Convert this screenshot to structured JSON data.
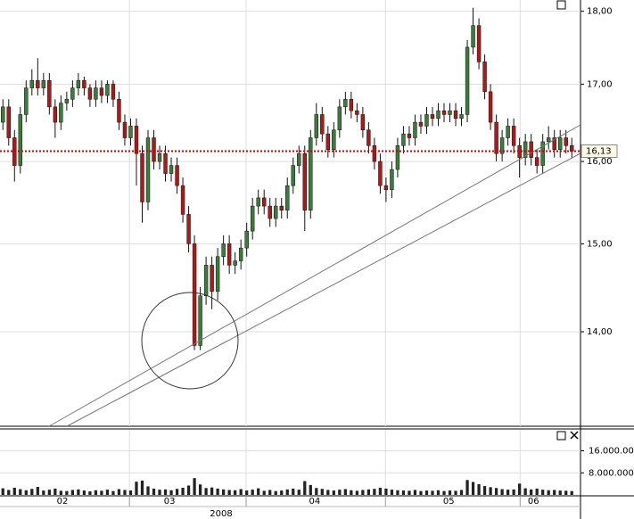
{
  "chart_data": {
    "type": "candlestick",
    "log_scale": true,
    "grid": true,
    "up_color": "#3a7d3a",
    "down_color": "#b01818",
    "ylim": [
      13.0,
      18.16
    ],
    "yticks": [
      {
        "value": 14,
        "label": "14,00"
      },
      {
        "value": 15,
        "label": "15,00"
      },
      {
        "value": 16,
        "label": "16,00"
      },
      {
        "value": 17,
        "label": "17,00"
      },
      {
        "value": 18,
        "label": "18,00"
      }
    ],
    "last_price": {
      "value": 16.13,
      "label": "16,13"
    },
    "xlim": [
      -0.5,
      99.5
    ],
    "xticks": [
      {
        "value": 10.25,
        "label": "02"
      },
      {
        "value": 28.7,
        "label": "03"
      },
      {
        "value": 53.7,
        "label": "04"
      },
      {
        "value": 76.8,
        "label": "05"
      },
      {
        "value": 91.4,
        "label": "06"
      }
    ],
    "year": {
      "value": 37.6,
      "label": "2008"
    },
    "xgrid": [
      21.8,
      41.9,
      65.9,
      89.1
    ],
    "ohlc": [
      [
        16.5,
        16.8,
        16.4,
        16.7
      ],
      [
        16.7,
        16.8,
        16.2,
        16.3
      ],
      [
        16.3,
        16.4,
        15.75,
        15.95
      ],
      [
        15.95,
        16.7,
        15.85,
        16.6
      ],
      [
        16.6,
        17.05,
        16.5,
        16.95
      ],
      [
        16.95,
        17.2,
        16.85,
        17.05
      ],
      [
        17.05,
        17.35,
        16.85,
        16.95
      ],
      [
        16.95,
        17.15,
        16.85,
        17.05
      ],
      [
        17.05,
        17.15,
        16.6,
        16.7
      ],
      [
        16.7,
        16.8,
        16.3,
        16.5
      ],
      [
        16.5,
        16.85,
        16.4,
        16.75
      ],
      [
        16.75,
        16.9,
        16.65,
        16.8
      ],
      [
        16.8,
        17.05,
        16.7,
        16.95
      ],
      [
        16.95,
        17.15,
        16.85,
        17.05
      ],
      [
        17.05,
        17.1,
        16.85,
        16.95
      ],
      [
        16.95,
        17.0,
        16.7,
        16.8
      ],
      [
        16.8,
        17.05,
        16.7,
        16.95
      ],
      [
        16.95,
        17.05,
        16.75,
        16.85
      ],
      [
        16.85,
        17.05,
        16.75,
        17.0
      ],
      [
        17.0,
        17.05,
        16.7,
        16.8
      ],
      [
        16.8,
        16.9,
        16.4,
        16.5
      ],
      [
        16.5,
        16.6,
        16.2,
        16.3
      ],
      [
        16.3,
        16.55,
        16.2,
        16.45
      ],
      [
        16.45,
        16.55,
        15.7,
        16.1
      ],
      [
        16.1,
        16.2,
        15.25,
        15.5
      ],
      [
        15.5,
        16.4,
        15.4,
        16.3
      ],
      [
        16.3,
        16.4,
        15.9,
        16.0
      ],
      [
        16.0,
        16.2,
        15.9,
        16.1
      ],
      [
        16.1,
        16.2,
        15.75,
        15.85
      ],
      [
        15.85,
        16.05,
        15.75,
        15.95
      ],
      [
        15.95,
        16.05,
        15.6,
        15.7
      ],
      [
        15.7,
        15.8,
        15.25,
        15.35
      ],
      [
        15.35,
        15.45,
        14.9,
        15.0
      ],
      [
        15.0,
        15.1,
        13.8,
        13.85
      ],
      [
        13.85,
        14.5,
        13.8,
        14.4
      ],
      [
        14.4,
        14.85,
        14.3,
        14.75
      ],
      [
        14.75,
        14.85,
        14.25,
        14.45
      ],
      [
        14.45,
        14.95,
        14.35,
        14.85
      ],
      [
        14.85,
        15.1,
        14.75,
        15.0
      ],
      [
        15.0,
        15.1,
        14.65,
        14.75
      ],
      [
        14.75,
        14.9,
        14.65,
        14.8
      ],
      [
        14.8,
        15.05,
        14.7,
        14.95
      ],
      [
        14.95,
        15.25,
        14.85,
        15.15
      ],
      [
        15.15,
        15.55,
        15.05,
        15.45
      ],
      [
        15.45,
        15.65,
        15.35,
        15.55
      ],
      [
        15.55,
        15.65,
        15.35,
        15.45
      ],
      [
        15.45,
        15.55,
        15.2,
        15.3
      ],
      [
        15.3,
        15.55,
        15.2,
        15.45
      ],
      [
        15.45,
        15.55,
        15.3,
        15.4
      ],
      [
        15.4,
        15.8,
        15.3,
        15.7
      ],
      [
        15.7,
        16.05,
        15.6,
        15.95
      ],
      [
        15.95,
        16.2,
        15.85,
        16.1
      ],
      [
        16.1,
        16.2,
        15.15,
        15.4
      ],
      [
        15.4,
        16.4,
        15.3,
        16.3
      ],
      [
        16.3,
        16.75,
        16.2,
        16.6
      ],
      [
        16.6,
        16.7,
        16.25,
        16.35
      ],
      [
        16.35,
        16.45,
        16.05,
        16.15
      ],
      [
        16.15,
        16.5,
        16.05,
        16.4
      ],
      [
        16.4,
        16.8,
        16.3,
        16.7
      ],
      [
        16.7,
        16.9,
        16.6,
        16.8
      ],
      [
        16.8,
        16.9,
        16.55,
        16.65
      ],
      [
        16.65,
        16.75,
        16.5,
        16.6
      ],
      [
        16.6,
        16.7,
        16.3,
        16.4
      ],
      [
        16.4,
        16.5,
        16.1,
        16.2
      ],
      [
        16.2,
        16.3,
        15.9,
        16.0
      ],
      [
        16.0,
        16.1,
        15.6,
        15.7
      ],
      [
        15.7,
        15.8,
        15.5,
        15.65
      ],
      [
        15.65,
        16.0,
        15.55,
        15.9
      ],
      [
        15.9,
        16.3,
        15.8,
        16.2
      ],
      [
        16.2,
        16.45,
        16.1,
        16.35
      ],
      [
        16.35,
        16.45,
        16.2,
        16.3
      ],
      [
        16.3,
        16.6,
        16.2,
        16.5
      ],
      [
        16.5,
        16.6,
        16.35,
        16.45
      ],
      [
        16.45,
        16.7,
        16.35,
        16.6
      ],
      [
        16.6,
        16.7,
        16.45,
        16.55
      ],
      [
        16.55,
        16.75,
        16.45,
        16.65
      ],
      [
        16.65,
        16.75,
        16.5,
        16.6
      ],
      [
        16.6,
        16.75,
        16.5,
        16.65
      ],
      [
        16.65,
        16.75,
        16.45,
        16.55
      ],
      [
        16.55,
        16.7,
        16.45,
        16.6
      ],
      [
        16.6,
        17.6,
        16.5,
        17.5
      ],
      [
        17.5,
        18.05,
        17.4,
        17.8
      ],
      [
        17.8,
        17.9,
        17.2,
        17.3
      ],
      [
        17.3,
        17.4,
        16.8,
        16.9
      ],
      [
        16.9,
        17.0,
        16.4,
        16.5
      ],
      [
        16.5,
        16.6,
        16.0,
        16.1
      ],
      [
        16.1,
        16.4,
        16.0,
        16.3
      ],
      [
        16.3,
        16.55,
        16.2,
        16.45
      ],
      [
        16.45,
        16.55,
        16.1,
        16.2
      ],
      [
        16.2,
        16.3,
        15.8,
        16.05
      ],
      [
        16.05,
        16.35,
        15.95,
        16.25
      ],
      [
        16.25,
        16.35,
        15.95,
        16.05
      ],
      [
        16.05,
        16.15,
        15.85,
        15.95
      ],
      [
        15.95,
        16.35,
        15.85,
        16.25
      ],
      [
        16.25,
        16.45,
        16.15,
        16.3
      ],
      [
        16.3,
        16.4,
        16.05,
        16.15
      ],
      [
        16.15,
        16.4,
        16.05,
        16.3
      ],
      [
        16.3,
        16.4,
        16.1,
        16.2
      ],
      [
        16.2,
        16.3,
        16.05,
        16.13
      ]
    ],
    "volume": {
      "color": "#222222",
      "ylim": [
        0,
        23600000
      ],
      "yticks": [
        {
          "value": 8000000,
          "label": "8.000.000"
        },
        {
          "value": 16000000,
          "label": "16.000.000"
        }
      ],
      "values": [
        2400000,
        1800000,
        2600000,
        2100000,
        1700000,
        2200000,
        2900000,
        1600000,
        1900000,
        2300000,
        1500000,
        1400000,
        1800000,
        2000000,
        1600000,
        1300000,
        1700000,
        1500000,
        1900000,
        1400000,
        2100000,
        1800000,
        1600000,
        4800000,
        5200000,
        3100000,
        2300000,
        1900000,
        2000000,
        1700000,
        2200000,
        2600000,
        3400000,
        6100000,
        3800000,
        2500000,
        2700000,
        2300000,
        2000000,
        1800000,
        1700000,
        2100000,
        1600000,
        1900000,
        2400000,
        1500000,
        1800000,
        1400000,
        1600000,
        2000000,
        2300000,
        1900000,
        5000000,
        3600000,
        2500000,
        2200000,
        1800000,
        1600000,
        1900000,
        2100000,
        1700000,
        1500000,
        1800000,
        2000000,
        2200000,
        2600000,
        2300000,
        1900000,
        1700000,
        1600000,
        1500000,
        1800000,
        1400000,
        1600000,
        1500000,
        1700000,
        1400000,
        1600000,
        1500000,
        1800000,
        5400000,
        4700000,
        3900000,
        3200000,
        2800000,
        2500000,
        2100000,
        1900000,
        2000000,
        4100000,
        2400000,
        2000000,
        2300000,
        1900000,
        1700000,
        1800000,
        1600000,
        1500000,
        1400000
      ]
    }
  }
}
